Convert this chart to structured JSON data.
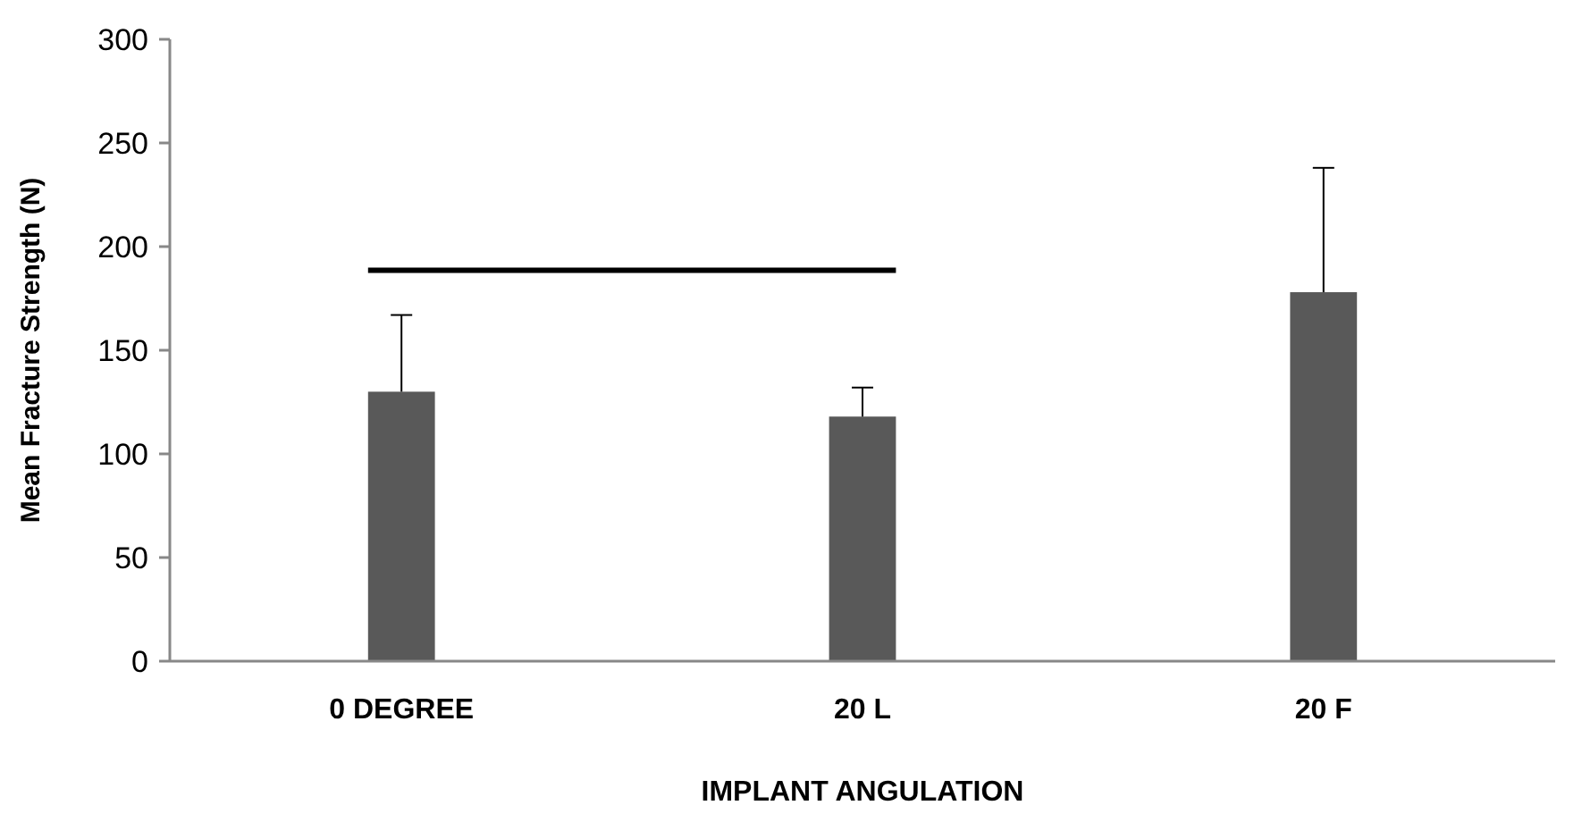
{
  "chart_data": {
    "type": "bar",
    "xlabel": "IMPLANT ANGULATION",
    "ylabel": "Mean Fracture Strength (N)",
    "categories": [
      "0 DEGREE",
      "20 L",
      "20 F"
    ],
    "values": [
      130,
      118,
      178
    ],
    "color": "#595959",
    "errors": [
      [
        130,
        167
      ],
      [
        118,
        132
      ],
      [
        178,
        238
      ]
    ],
    "ylim": [
      0,
      300
    ],
    "yticks": [
      0,
      50,
      100,
      150,
      200,
      250,
      300
    ],
    "grid": false
  }
}
